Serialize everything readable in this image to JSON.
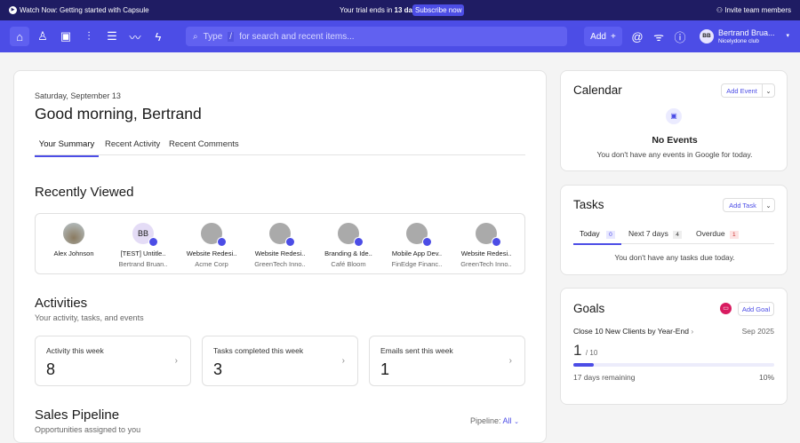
{
  "topbar": {
    "watch": "Watch Now: Getting started with Capsule",
    "trial_prefix": "Your trial ends in",
    "trial_days": "13 days",
    "subscribe": "Subscribe now",
    "invite": "Invite team members"
  },
  "nav": {
    "icons": [
      "home-icon",
      "person-icon",
      "calendar-icon",
      "bar-chart-icon",
      "list-icon",
      "trend-icon",
      "bolt-icon"
    ],
    "search_type": "Type",
    "search_key": "/",
    "search_placeholder": "for search and recent items...",
    "add": "Add",
    "user_initials": "BB",
    "user_name": "Bertrand Brua...",
    "user_org": "Nicelydone club"
  },
  "main": {
    "date": "Saturday, September 13",
    "greeting": "Good morning, Bertrand",
    "tabs": [
      "Your Summary",
      "Recent Activity",
      "Recent Comments"
    ],
    "recently_viewed_title": "Recently Viewed",
    "recent": [
      {
        "name": "Alex Johnson",
        "sub": ""
      },
      {
        "name": "[TEST] Untitle..",
        "sub": "Bertrand Bruan..",
        "initials": "BB"
      },
      {
        "name": "Website Redesi..",
        "sub": "Acme Corp"
      },
      {
        "name": "Website Redesi..",
        "sub": "GreenTech Inno.."
      },
      {
        "name": "Branding & Ide..",
        "sub": "Café Bloom"
      },
      {
        "name": "Mobile App Dev..",
        "sub": "FinEdge Financ.."
      },
      {
        "name": "Website Redesi..",
        "sub": "GreenTech Inno.."
      }
    ],
    "activities_title": "Activities",
    "activities_sub": "Your activity, tasks, and events",
    "stats": [
      {
        "label": "Activity this week",
        "value": "8"
      },
      {
        "label": "Tasks completed this week",
        "value": "3"
      },
      {
        "label": "Emails sent this week",
        "value": "1"
      }
    ],
    "pipeline_title": "Sales Pipeline",
    "pipeline_sub": "Opportunities assigned to you",
    "pipeline_label": "Pipeline:",
    "pipeline_value": "All"
  },
  "calendar": {
    "title": "Calendar",
    "add": "Add Event",
    "empty_title": "No Events",
    "empty_text": "You don't have any events in Google for today."
  },
  "tasks": {
    "title": "Tasks",
    "add": "Add Task",
    "tabs": [
      {
        "label": "Today",
        "count": "0"
      },
      {
        "label": "Next 7 days",
        "count": "4"
      },
      {
        "label": "Overdue",
        "count": "1"
      }
    ],
    "empty": "You don't have any tasks due today."
  },
  "goals": {
    "title": "Goals",
    "add": "Add Goal",
    "goal_name": "Close 10 New Clients by Year-End",
    "goal_date": "Sep 2025",
    "current": "1",
    "target": "/ 10",
    "remaining": "17 days remaining",
    "percent": "10%",
    "progress": 0.1
  }
}
